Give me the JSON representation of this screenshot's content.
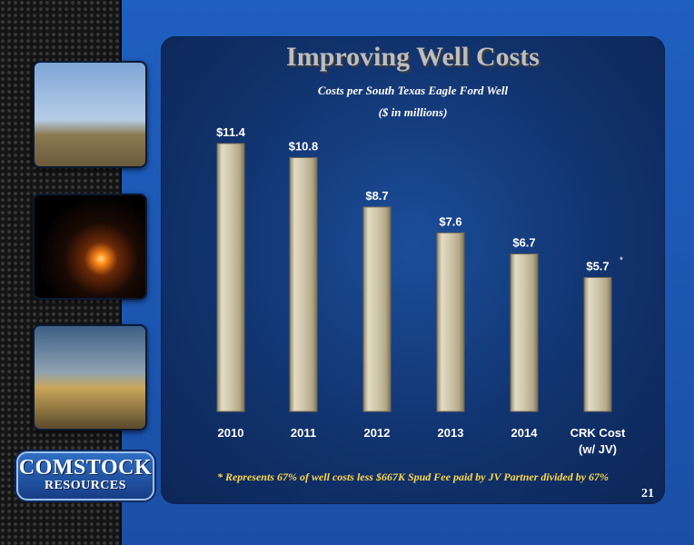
{
  "title": "Improving Well Costs",
  "subtitle": "Costs per South Texas Eagle Ford Well",
  "units": "($ in millions)",
  "footnote": "* Represents 67% of well costs less $667K Spud Fee paid by JV Partner divided by 67%",
  "page_number": "21",
  "logo": {
    "line1": "COMSTOCK",
    "line2": "RESOURCES"
  },
  "colors": {
    "background": "#1b55ad",
    "bar": "#c9bea0",
    "title": "#bdbdbd",
    "footnote": "#ffd84a"
  },
  "chart_data": {
    "type": "bar",
    "title": "Improving Well Costs",
    "subtitle": "Costs per South Texas Eagle Ford Well",
    "ylabel": "",
    "xlabel": "",
    "categories": [
      "2010",
      "2011",
      "2012",
      "2013",
      "2014",
      "CRK Cost (w/ JV)"
    ],
    "values": [
      11.4,
      10.8,
      8.7,
      7.6,
      6.7,
      5.7
    ],
    "value_labels": [
      "$11.4",
      "$10.8",
      "$8.7",
      "$7.6",
      "$6.7",
      "$5.7"
    ],
    "annotations": [
      {
        "category": "CRK Cost (w/ JV)",
        "text": "*"
      }
    ],
    "ylim": [
      0,
      11.4
    ],
    "grid": false,
    "legend": "none"
  }
}
